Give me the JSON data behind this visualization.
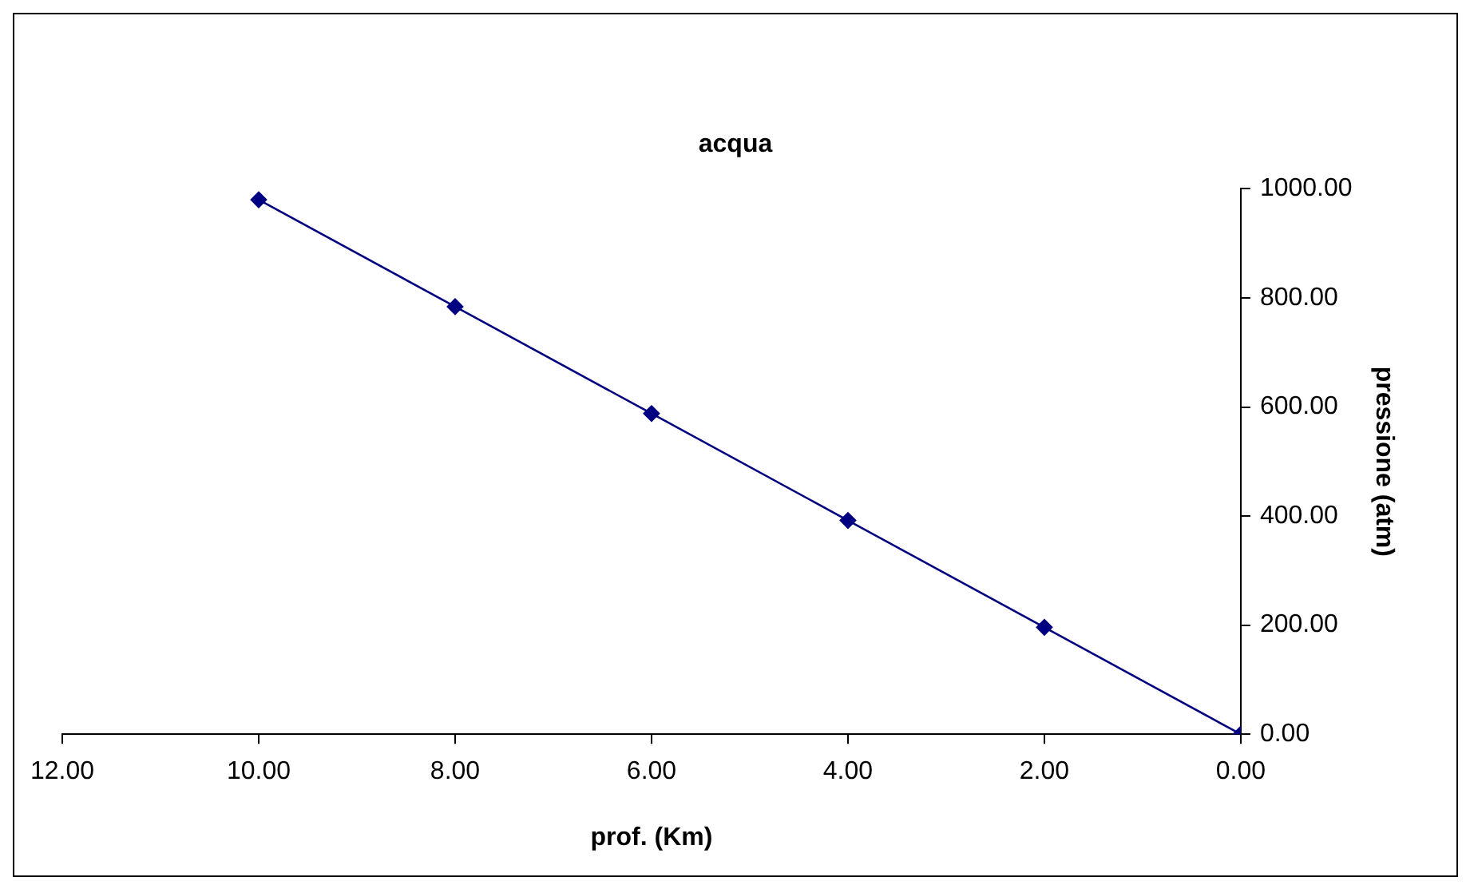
{
  "chart_data": {
    "type": "line",
    "title": "acqua",
    "xlabel": "prof. (Km)",
    "ylabel": "pressione (atm)",
    "x": [
      10,
      8,
      6,
      4,
      2,
      0
    ],
    "series": [
      {
        "color": "#000080",
        "values": [
          980,
          784,
          588,
          392,
          196,
          0
        ]
      }
    ],
    "xlim": [
      12,
      0
    ],
    "xticks": [
      {
        "value": 12,
        "label": "12.00"
      },
      {
        "value": 10,
        "label": "10.00"
      },
      {
        "value": 8,
        "label": "8.00"
      },
      {
        "value": 6,
        "label": "6.00"
      },
      {
        "value": 4,
        "label": "4.00"
      },
      {
        "value": 2,
        "label": "2.00"
      },
      {
        "value": 0,
        "label": "0.00"
      }
    ],
    "ylim": [
      0,
      1000
    ],
    "yticks": [
      {
        "value": 0,
        "label": "0.00"
      },
      {
        "value": 200,
        "label": "200.00"
      },
      {
        "value": 400,
        "label": "400.00"
      },
      {
        "value": 600,
        "label": "600.00"
      },
      {
        "value": 800,
        "label": "800.00"
      },
      {
        "value": 1000,
        "label": "1000.00"
      }
    ],
    "grid": false,
    "legend": false,
    "marker": "diamond",
    "line_style": "solid"
  }
}
